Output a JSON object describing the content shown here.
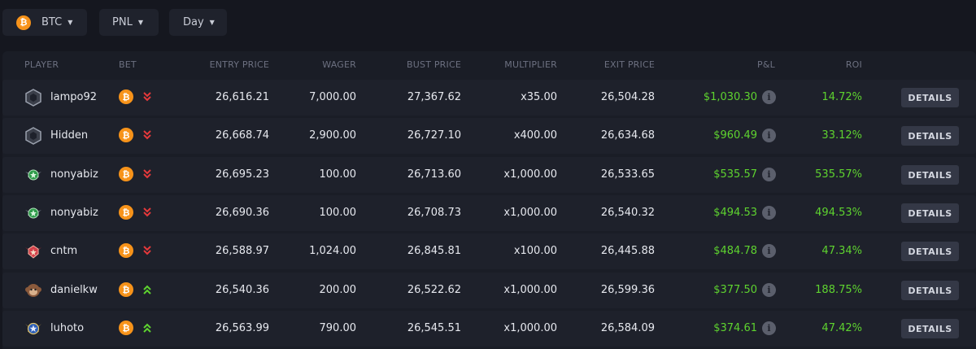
{
  "filters": {
    "coin": "BTC",
    "coin_icon": "bitcoin-icon",
    "metric": "PNL",
    "period": "Day"
  },
  "colors": {
    "background": "#15171f",
    "panel": "#1a1d26",
    "row": "#1e212b",
    "positive": "#5ed32f",
    "short": "#e5393b",
    "long": "#5ed32f",
    "bitcoin": "#f7931a",
    "details_button": "#343846"
  },
  "table": {
    "headers": {
      "player": "PLAYER",
      "bet": "BET",
      "entry_price": "ENTRY PRICE",
      "wager": "WAGER",
      "bust_price": "BUST PRICE",
      "multiplier": "MULTIPLIER",
      "exit_price": "EXIT PRICE",
      "pnl": "P&L",
      "roi": "ROI"
    },
    "rows": [
      {
        "player": "lampo92",
        "avatar": "gray-hexagon-badge-icon",
        "direction": "down",
        "entry_price": "26,616.21",
        "wager": "7,000.00",
        "bust_price": "27,367.62",
        "multiplier": "x35.00",
        "exit_price": "26,504.28",
        "pnl": "$1,030.30",
        "roi": "14.72%",
        "details": "DETAILS"
      },
      {
        "player": "Hidden",
        "avatar": "gray-hexagon-badge-icon",
        "direction": "down",
        "entry_price": "26,668.74",
        "wager": "2,900.00",
        "bust_price": "26,727.10",
        "multiplier": "x400.00",
        "exit_price": "26,634.68",
        "pnl": "$960.49",
        "roi": "33.12%",
        "details": "DETAILS"
      },
      {
        "player": "nonyabiz",
        "avatar": "green-winged-badge-icon",
        "direction": "down",
        "entry_price": "26,695.23",
        "wager": "100.00",
        "bust_price": "26,713.60",
        "multiplier": "x1,000.00",
        "exit_price": "26,533.65",
        "pnl": "$535.57",
        "roi": "535.57%",
        "details": "DETAILS"
      },
      {
        "player": "nonyabiz",
        "avatar": "green-winged-badge-icon",
        "direction": "down",
        "entry_price": "26,690.36",
        "wager": "100.00",
        "bust_price": "26,708.73",
        "multiplier": "x1,000.00",
        "exit_price": "26,540.32",
        "pnl": "$494.53",
        "roi": "494.53%",
        "details": "DETAILS"
      },
      {
        "player": "cntm",
        "avatar": "red-winged-badge-icon",
        "direction": "down",
        "entry_price": "26,588.97",
        "wager": "1,024.00",
        "bust_price": "26,845.81",
        "multiplier": "x100.00",
        "exit_price": "26,445.88",
        "pnl": "$484.78",
        "roi": "47.34%",
        "details": "DETAILS"
      },
      {
        "player": "danielkw",
        "avatar": "brown-monkey-badge-icon",
        "direction": "up",
        "entry_price": "26,540.36",
        "wager": "200.00",
        "bust_price": "26,522.62",
        "multiplier": "x1,000.00",
        "exit_price": "26,599.36",
        "pnl": "$377.50",
        "roi": "188.75%",
        "details": "DETAILS"
      },
      {
        "player": "luhoto",
        "avatar": "blue-winged-badge-icon",
        "direction": "up",
        "entry_price": "26,563.99",
        "wager": "790.00",
        "bust_price": "26,545.51",
        "multiplier": "x1,000.00",
        "exit_price": "26,584.09",
        "pnl": "$374.61",
        "roi": "47.42%",
        "details": "DETAILS"
      }
    ]
  }
}
